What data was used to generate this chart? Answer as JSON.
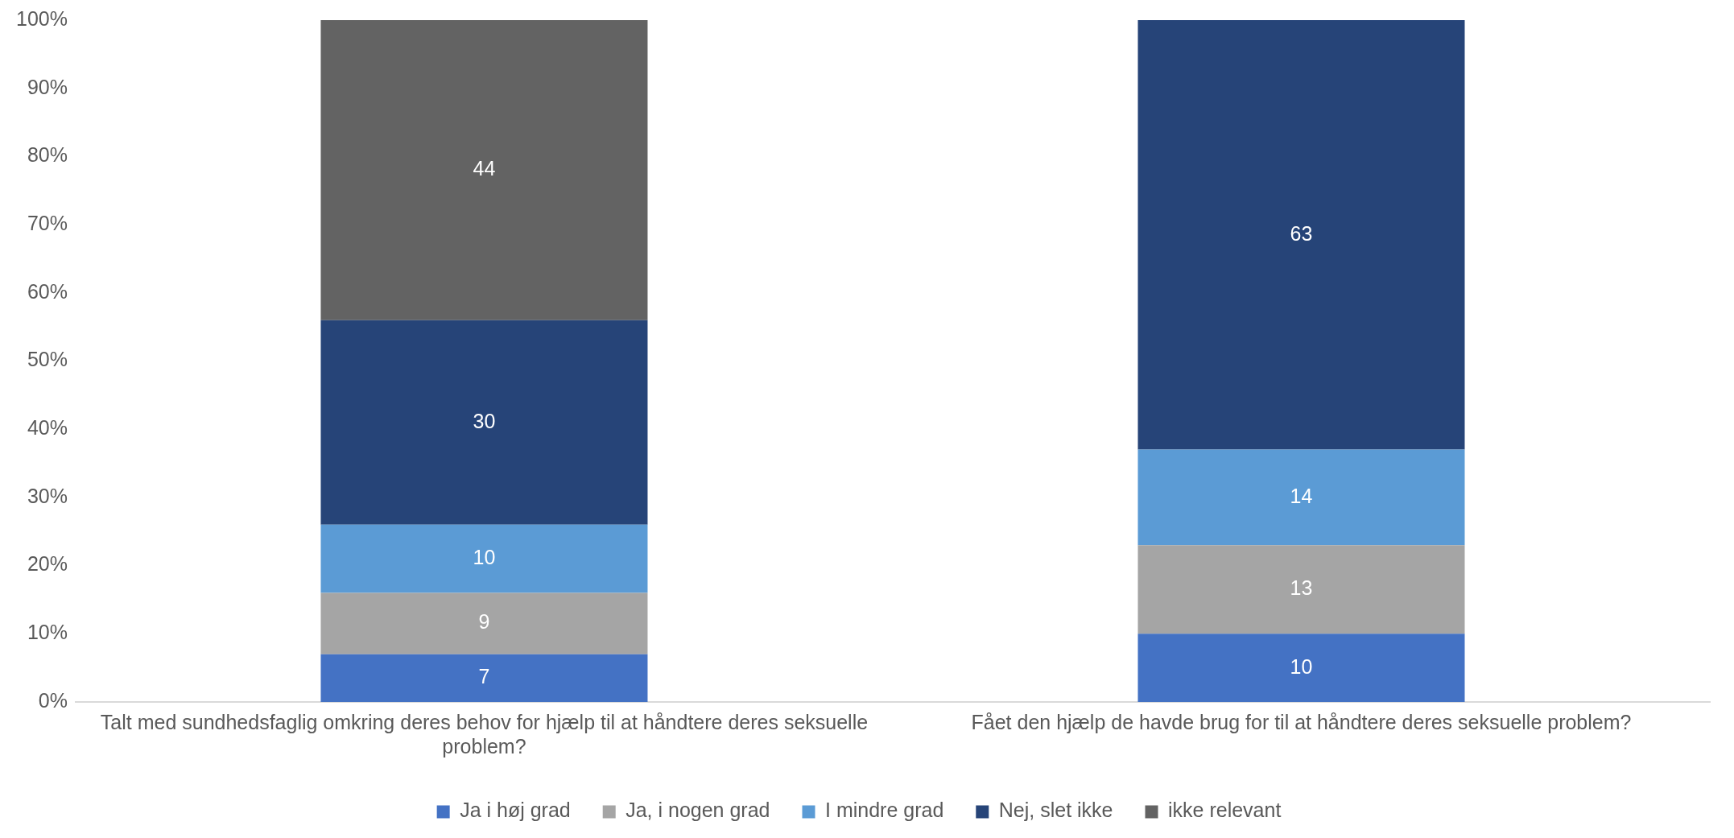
{
  "chart_data": {
    "type": "bar",
    "stacked": true,
    "categories": [
      "Talt med sundhedsfaglig omkring deres behov for hjælp til at håndtere deres seksuelle problem?",
      "Fået den hjælp de havde brug for til at håndtere deres seksuelle problem?"
    ],
    "series": [
      {
        "name": "Ja i høj grad",
        "color": "#4472c4",
        "values": [
          7,
          10
        ]
      },
      {
        "name": "Ja, i nogen grad",
        "color": "#a5a5a5",
        "values": [
          9,
          13
        ]
      },
      {
        "name": "I mindre grad",
        "color": "#5b9bd5",
        "values": [
          10,
          14
        ]
      },
      {
        "name": "Nej, slet ikke",
        "color": "#264478",
        "values": [
          30,
          63
        ]
      },
      {
        "name": "ikke relevant",
        "color": "#636363",
        "values": [
          44,
          null
        ]
      }
    ],
    "ylim": [
      0,
      100
    ],
    "yticks": [
      {
        "value": 0,
        "label": "0%"
      },
      {
        "value": 10,
        "label": "10%"
      },
      {
        "value": 20,
        "label": "20%"
      },
      {
        "value": 30,
        "label": "30%"
      },
      {
        "value": 40,
        "label": "40%"
      },
      {
        "value": 50,
        "label": "50%"
      },
      {
        "value": 60,
        "label": "60%"
      },
      {
        "value": 70,
        "label": "70%"
      },
      {
        "value": 80,
        "label": "80%"
      },
      {
        "value": 90,
        "label": "90%"
      },
      {
        "value": 100,
        "label": "100%"
      }
    ],
    "grid": false,
    "legend": "bottom",
    "data_labels": true
  }
}
